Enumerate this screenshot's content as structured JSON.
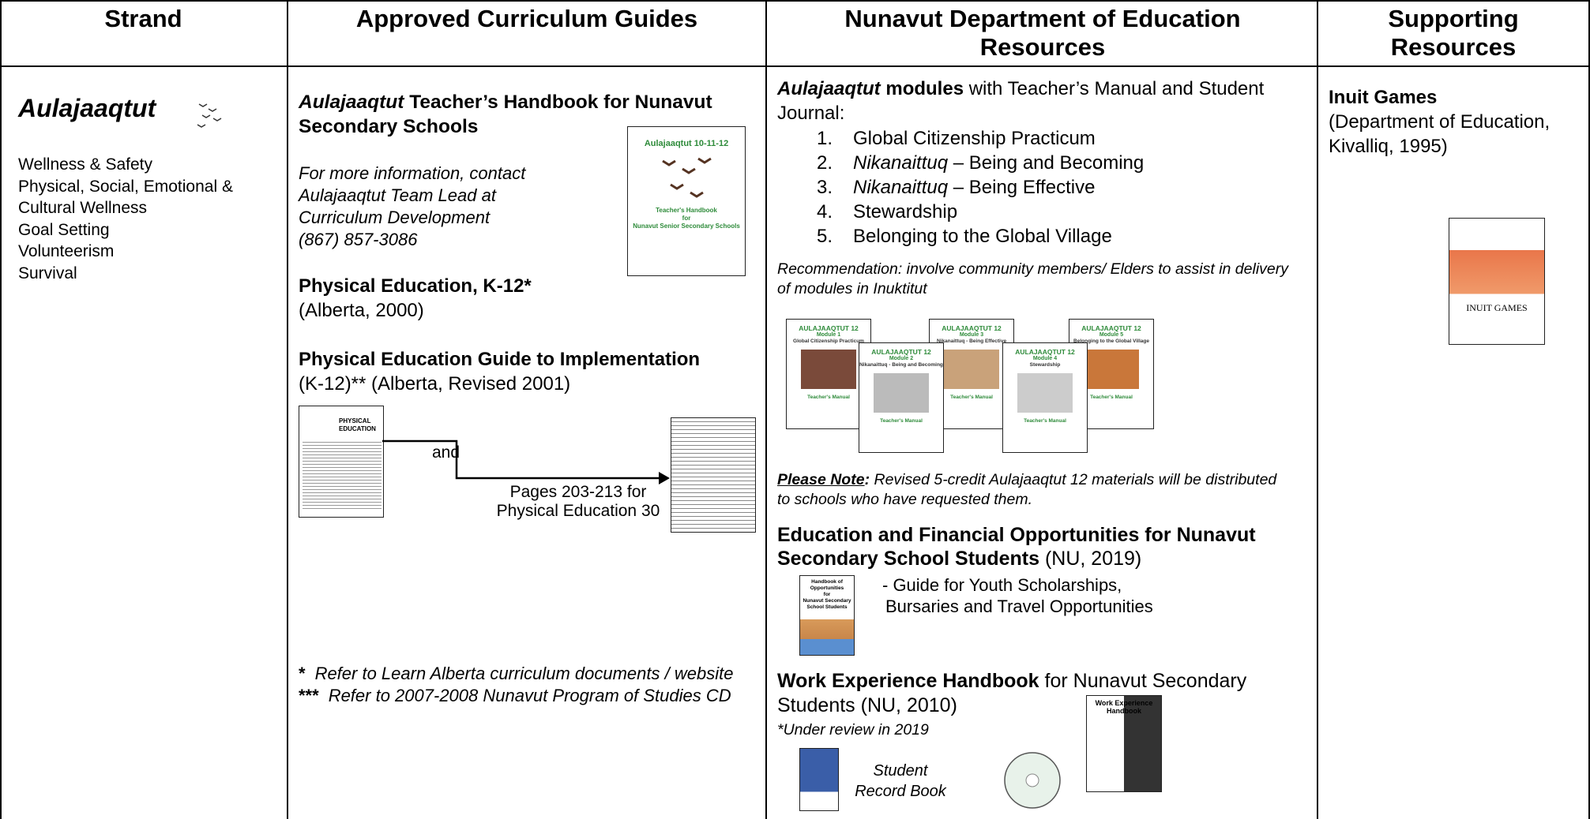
{
  "table": {
    "headers": [
      "Strand",
      "Approved Curriculum Guides",
      "Nunavut Department of Education Resources",
      "Supporting Resources"
    ],
    "strand": {
      "title": "Aulajaaqtut",
      "items": [
        "Wellness & Safety",
        "Physical, Social, Emotional &",
        "Cultural Wellness",
        "Goal Setting",
        "Volunteerism",
        "Survival"
      ]
    },
    "guides": {
      "handbook": {
        "title_italic": "Aulajaaqtut",
        "title": " Teacher’s Handbook for Nunavut Secondary Schools",
        "contact": [
          "For more information, contact",
          "Aulajaaqtut Team Lead at",
          "Curriculum Development",
          "(867) 857-3086"
        ],
        "cover": {
          "title": "Aulajaaqtut 10-11-12",
          "subtitle": [
            "Teacher's Handbook",
            "for",
            "Nunavut Senior Secondary Schools"
          ]
        }
      },
      "physical_education": {
        "title": "Physical Education, K-12*",
        "source": "(Alberta, 2000)"
      },
      "implementation": {
        "title": "Physical Education Guide to Implementation",
        "source": "(K-12)** (Alberta, Revised 2001)",
        "cover_title": [
          "PHYSICAL",
          "EDUCATION"
        ],
        "connector": "and",
        "pages": [
          "Pages 203-213 for",
          "Physical Education 30"
        ]
      },
      "footnotes": [
        {
          "mark": "*",
          "text": "Refer to Learn Alberta curriculum documents / website"
        },
        {
          "mark": "***",
          "text": "Refer to 2007-2008 Nunavut Program of Studies CD"
        }
      ]
    },
    "resources": {
      "modules": {
        "title_italic": "Aulajaaqtut",
        "title_bold": " modules",
        "rest": " with Teacher’s Manual and Student Journal:",
        "list": [
          {
            "text": "Global Citizenship Practicum"
          },
          {
            "italic": "Nikanaittuq",
            "text": " – Being and Becoming"
          },
          {
            "italic": "Nikanaittuq",
            "text": " – Being Effective"
          },
          {
            "text": "Stewardship"
          },
          {
            "text": "Belonging to the Global Village"
          }
        ],
        "recommendation": "Recommendation: involve community members/ Elders to assist in delivery of modules in Inuktitut",
        "covers": [
          {
            "title": "AULAJAAQTUT 12",
            "module": "Module 1",
            "name": "Global Citizenship Practicum",
            "manual": "Teacher's Manual"
          },
          {
            "title": "AULAJAAQTUT 12",
            "module": "Module 2",
            "name": "Nikanaittuq - Being and Becoming",
            "manual": "Teacher's Manual"
          },
          {
            "title": "AULAJAAQTUT 12",
            "module": "Module 3",
            "name": "Nikanaittuq - Being Effective",
            "manual": "Teacher's Manual"
          },
          {
            "title": "AULAJAAQTUT 12",
            "module": "Module 4",
            "name": "Stewardship",
            "manual": "Teacher's Manual"
          },
          {
            "title": "AULAJAAQTUT 12",
            "module": "Module 5",
            "name": "Belonging to the Global Village",
            "manual": "Teacher's Manual"
          }
        ]
      },
      "note": {
        "label": "Please Note",
        "colon": ":",
        "text": " Revised 5-credit Aulajaaqtut 12 materials will be distributed to schools who have requested them."
      },
      "opportunities": {
        "title": "Education and Financial Opportunities for Nunavut Secondary School Students",
        "source": " (NU, 2019)",
        "description": [
          "- Guide for Youth Scholarships,",
          "Bursaries and Travel Opportunities"
        ],
        "cover": [
          "Handbook of",
          "Opportunities",
          "for",
          "Nunavut Secondary",
          "School Students"
        ]
      },
      "work": {
        "title": "Work Experience Handbook",
        "rest": " for Nunavut Secondary Students (NU, 2010)",
        "review": "*Under review in 2019",
        "record": [
          "Student",
          "Record Book"
        ],
        "cover": [
          "Work Experience",
          "Handbook"
        ]
      }
    },
    "supporting": {
      "title": "Inuit Games",
      "source": "(Department of Education, Kivalliq, 1995)",
      "cover": "INUIT GAMES"
    }
  }
}
